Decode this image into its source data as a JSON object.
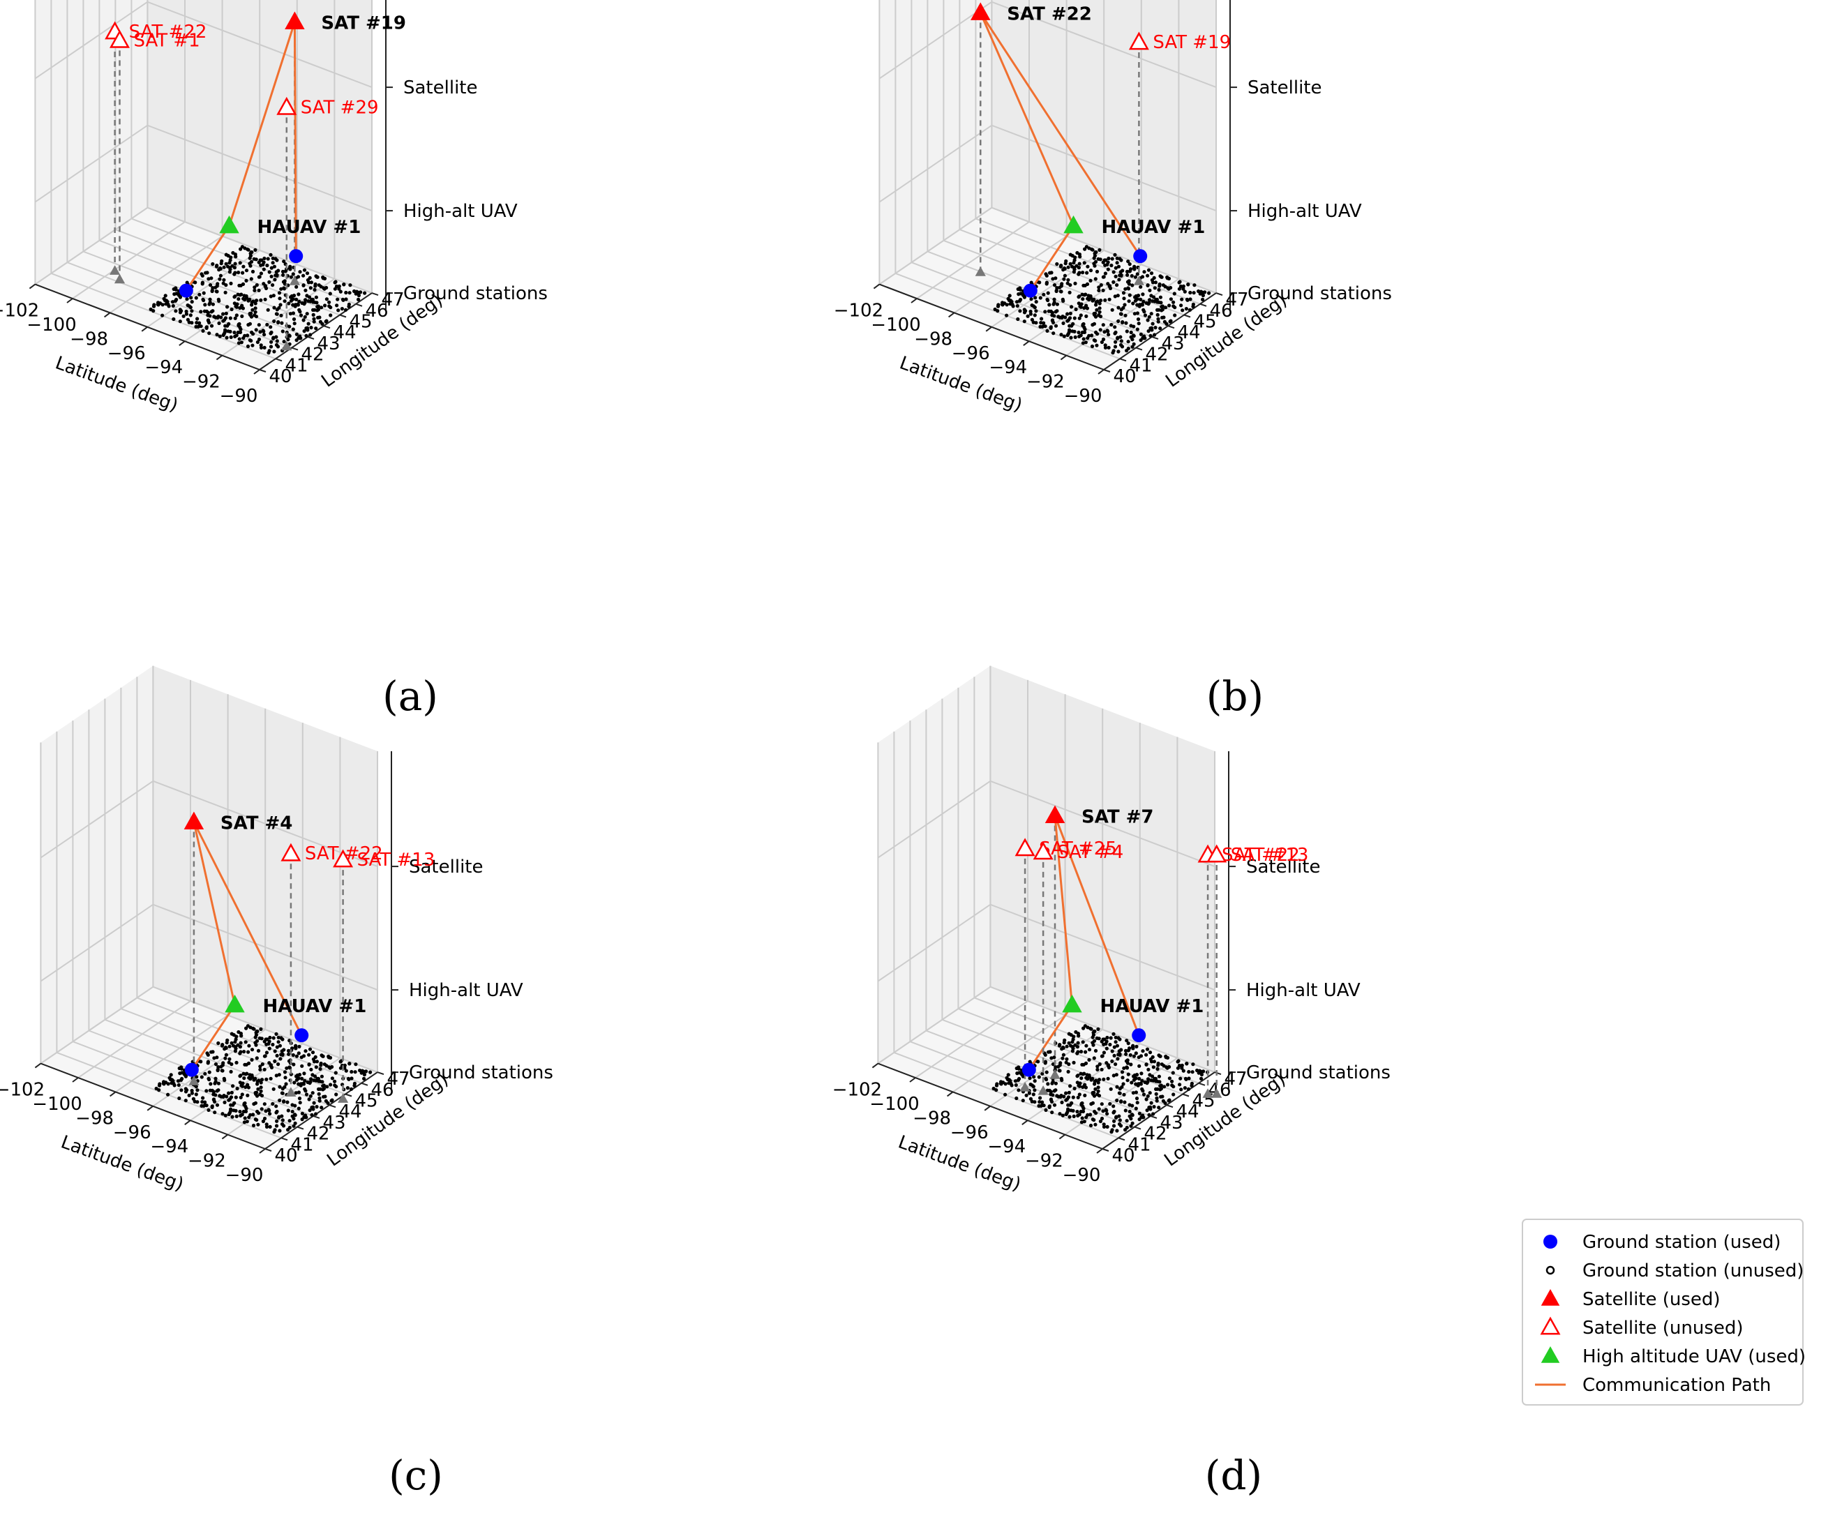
{
  "figure": {
    "z_tick_labels": [
      "Ground stations",
      "High-alt UAV",
      "Satellite"
    ],
    "x_label": "Latitude (deg)",
    "y_label": "Longitude (deg)",
    "x_tick_labels": [
      "−102",
      "−100",
      "−98",
      "−96",
      "−94",
      "−92",
      "−90"
    ],
    "y_tick_labels": [
      "40",
      "41",
      "42",
      "43",
      "44",
      "45",
      "46",
      "47"
    ]
  },
  "legend": {
    "items": [
      {
        "label": "Ground station (used)",
        "icon": "blue-filled-circle",
        "color": "#0000ff"
      },
      {
        "label": "Ground station (unused)",
        "icon": "black-hollow-circle",
        "color": "#000000"
      },
      {
        "label": "Satellite (used)",
        "icon": "red-filled-triangle",
        "color": "#ff0000"
      },
      {
        "label": "Satellite (unused)",
        "icon": "red-hollow-triangle",
        "color": "#ff0000"
      },
      {
        "label": "High altitude UAV (used)",
        "icon": "green-filled-triangle",
        "color": "#22cc22"
      },
      {
        "label": "Communication Path",
        "icon": "orange-line",
        "color": "#f07030"
      }
    ]
  },
  "colors": {
    "used_satellite": "#ff0000",
    "ground_used": "#0000ff",
    "hauav": "#22cc22",
    "path": "#f07030",
    "projection": "#777777",
    "pane_fill": "#f2f2f2",
    "grid": "#cccccc"
  },
  "chart_data": [
    {
      "type": "scatter",
      "panel": "a",
      "caption": "(a)",
      "xlim": [
        -102,
        -90
      ],
      "ylim": [
        40,
        47
      ],
      "used_satellite": {
        "label": "SAT #19",
        "lat": -94.9,
        "lon": 47.9
      },
      "unused_satellites": [
        {
          "label": "SAT #22",
          "lat": -101.6,
          "lon": 44.5
        },
        {
          "label": "SAT #1",
          "lat": -101.0,
          "lon": 44.1
        },
        {
          "label": "SAT #29",
          "lat": -91.9,
          "lon": 43.9
        }
      ],
      "hauav": {
        "label": "HAUAV #1",
        "lat": -96.0,
        "lon": 45.1
      },
      "ground_used": [
        {
          "lat": -96.5,
          "lon": 43.0
        },
        {
          "lat": -92.6,
          "lon": 45.3
        }
      ]
    },
    {
      "type": "scatter",
      "panel": "b",
      "caption": "(b)",
      "xlim": [
        -102,
        -90
      ],
      "ylim": [
        40,
        47
      ],
      "used_satellite": {
        "label": "SAT #22",
        "lat": -100.8,
        "lon": 44.9
      },
      "unused_satellites": [
        {
          "label": "SAT #19",
          "lat": -94.9,
          "lon": 47.9
        }
      ],
      "hauav": {
        "label": "HAUAV #1",
        "lat": -96.0,
        "lon": 45.1
      },
      "ground_used": [
        {
          "lat": -96.5,
          "lon": 43.0
        },
        {
          "lat": -92.6,
          "lon": 45.3
        }
      ]
    },
    {
      "type": "scatter",
      "panel": "c",
      "caption": "(c)",
      "xlim": [
        -102,
        -90
      ],
      "ylim": [
        40,
        47
      ],
      "used_satellite": {
        "label": "SAT #4",
        "lat": -97.5,
        "lon": 44.3
      },
      "unused_satellites": [
        {
          "label": "SAT #22",
          "lat": -93.6,
          "lon": 45.8
        },
        {
          "label": "SAT #13",
          "lat": -91.5,
          "lon": 46.6
        }
      ],
      "hauav": {
        "label": "HAUAV #1",
        "lat": -96.0,
        "lon": 45.1
      },
      "ground_used": [
        {
          "lat": -96.5,
          "lon": 43.0
        },
        {
          "lat": -92.6,
          "lon": 45.3
        }
      ]
    },
    {
      "type": "scatter",
      "panel": "d",
      "caption": "(d)",
      "xlim": [
        -102,
        -90
      ],
      "ylim": [
        40,
        47
      ],
      "used_satellite": {
        "label": "SAT #7",
        "lat": -97.0,
        "lon": 45.2
      },
      "unused_satellites": [
        {
          "label": "SAT #25",
          "lat": -97.4,
          "lon": 43.8
        },
        {
          "label": "SAT #4",
          "lat": -96.6,
          "lon": 44.0
        },
        {
          "label": "SAT #22",
          "lat": -90.8,
          "lon": 47.5
        },
        {
          "label": "SAT #13",
          "lat": -90.5,
          "lon": 47.7
        }
      ],
      "hauav": {
        "label": "HAUAV #1",
        "lat": -96.0,
        "lon": 45.1
      },
      "ground_used": [
        {
          "lat": -96.5,
          "lon": 43.0
        },
        {
          "lat": -92.6,
          "lon": 45.3
        }
      ]
    }
  ]
}
